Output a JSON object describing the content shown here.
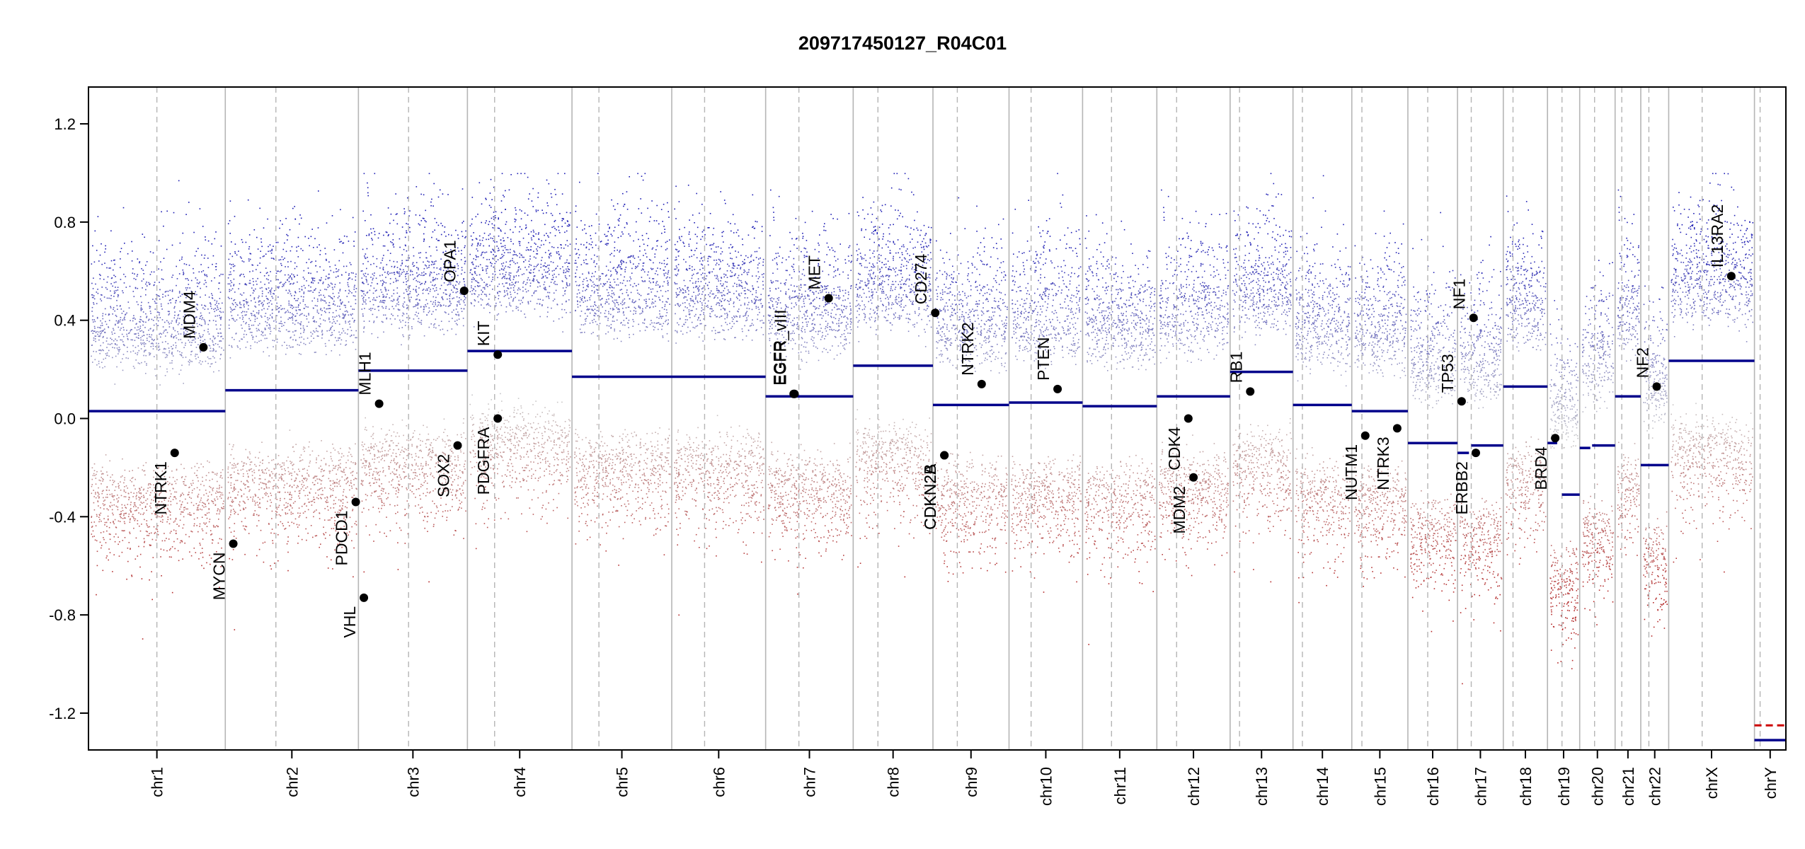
{
  "chart_data": {
    "type": "scatter",
    "title": "209717450127_R04C01",
    "xlabel": "",
    "ylabel": "",
    "ylim": [
      -1.35,
      1.35
    ],
    "yticks": [
      -1.2,
      -0.8,
      -0.4,
      0.0,
      0.4,
      0.8,
      1.2
    ],
    "ytick_labels": [
      "-1.2",
      "-0.8",
      "-0.4",
      "0.0",
      "0.4",
      "0.8",
      "1.2"
    ],
    "chromosomes": [
      {
        "name": "chr1",
        "length": 248.9,
        "centromere": 0.5
      },
      {
        "name": "chr2",
        "length": 242.2,
        "centromere": 0.38
      },
      {
        "name": "chr3",
        "length": 198.3,
        "centromere": 0.46
      },
      {
        "name": "chr4",
        "length": 190.2,
        "centromere": 0.26
      },
      {
        "name": "chr5",
        "length": 181.5,
        "centromere": 0.27
      },
      {
        "name": "chr6",
        "length": 170.8,
        "centromere": 0.35
      },
      {
        "name": "chr7",
        "length": 159.3,
        "centromere": 0.38
      },
      {
        "name": "chr8",
        "length": 145.1,
        "centromere": 0.31
      },
      {
        "name": "chr9",
        "length": 138.4,
        "centromere": 0.32
      },
      {
        "name": "chr10",
        "length": 133.8,
        "centromere": 0.3
      },
      {
        "name": "chr11",
        "length": 135.1,
        "centromere": 0.39
      },
      {
        "name": "chr12",
        "length": 133.3,
        "centromere": 0.27
      },
      {
        "name": "chr13",
        "length": 114.4,
        "centromere": 0.15
      },
      {
        "name": "chr14",
        "length": 107.0,
        "centromere": 0.16
      },
      {
        "name": "chr15",
        "length": 102.0,
        "centromere": 0.18
      },
      {
        "name": "chr16",
        "length": 90.3,
        "centromere": 0.4
      },
      {
        "name": "chr17",
        "length": 83.3,
        "centromere": 0.3
      },
      {
        "name": "chr18",
        "length": 80.4,
        "centromere": 0.22
      },
      {
        "name": "chr19",
        "length": 58.6,
        "centromere": 0.45
      },
      {
        "name": "chr20",
        "length": 64.4,
        "centromere": 0.42
      },
      {
        "name": "chr21",
        "length": 46.7,
        "centromere": 0.26
      },
      {
        "name": "chr22",
        "length": 50.8,
        "centromere": 0.29
      },
      {
        "name": "chrX",
        "length": 156.0,
        "centromere": 0.39
      },
      {
        "name": "chrY",
        "length": 57.2,
        "centromere": 0.18
      }
    ],
    "segments": [
      {
        "chr": "chr1",
        "start": 0.0,
        "end": 1.0,
        "value": 0.03
      },
      {
        "chr": "chr2",
        "start": 0.0,
        "end": 1.0,
        "value": 0.115
      },
      {
        "chr": "chr3",
        "start": 0.0,
        "end": 1.0,
        "value": 0.195
      },
      {
        "chr": "chr4",
        "start": 0.0,
        "end": 1.0,
        "value": 0.275
      },
      {
        "chr": "chr5",
        "start": 0.0,
        "end": 1.0,
        "value": 0.17
      },
      {
        "chr": "chr6",
        "start": 0.0,
        "end": 1.0,
        "value": 0.17
      },
      {
        "chr": "chr7",
        "start": 0.0,
        "end": 1.0,
        "value": 0.09
      },
      {
        "chr": "chr8",
        "start": 0.0,
        "end": 1.0,
        "value": 0.215
      },
      {
        "chr": "chr9",
        "start": 0.0,
        "end": 1.0,
        "value": 0.055
      },
      {
        "chr": "chr10",
        "start": 0.0,
        "end": 1.0,
        "value": 0.065
      },
      {
        "chr": "chr11",
        "start": 0.0,
        "end": 1.0,
        "value": 0.05
      },
      {
        "chr": "chr12",
        "start": 0.0,
        "end": 1.0,
        "value": 0.09
      },
      {
        "chr": "chr13",
        "start": 0.0,
        "end": 1.0,
        "value": 0.19
      },
      {
        "chr": "chr14",
        "start": 0.0,
        "end": 1.0,
        "value": 0.055
      },
      {
        "chr": "chr15",
        "start": 0.0,
        "end": 1.0,
        "value": 0.03
      },
      {
        "chr": "chr16",
        "start": 0.0,
        "end": 1.0,
        "value": -0.1
      },
      {
        "chr": "chr17",
        "start": 0.0,
        "end": 0.25,
        "value": -0.14
      },
      {
        "chr": "chr17",
        "start": 0.3,
        "end": 1.0,
        "value": -0.11
      },
      {
        "chr": "chr18",
        "start": 0.0,
        "end": 1.0,
        "value": 0.13
      },
      {
        "chr": "chr19",
        "start": 0.0,
        "end": 0.3,
        "value": -0.1
      },
      {
        "chr": "chr19",
        "start": 0.45,
        "end": 1.0,
        "value": -0.31
      },
      {
        "chr": "chr20",
        "start": 0.0,
        "end": 0.3,
        "value": -0.12
      },
      {
        "chr": "chr20",
        "start": 0.35,
        "end": 1.0,
        "value": -0.11
      },
      {
        "chr": "chr21",
        "start": 0.0,
        "end": 1.0,
        "value": 0.09
      },
      {
        "chr": "chr22",
        "start": 0.0,
        "end": 1.0,
        "value": -0.19
      },
      {
        "chr": "chrX",
        "start": 0.0,
        "end": 1.0,
        "value": 0.235
      },
      {
        "chr": "chrY",
        "start": 0.0,
        "end": 1.0,
        "value": -1.31
      }
    ],
    "red_segments": [
      {
        "chr": "chrY",
        "start": 0.0,
        "end": 1.0,
        "value": -1.25
      }
    ],
    "genes": [
      {
        "name": "NTRK1",
        "chr": "chr1",
        "pos": 0.63,
        "value": -0.14,
        "side": "below"
      },
      {
        "name": "MDM4",
        "chr": "chr1",
        "pos": 0.84,
        "value": 0.29,
        "side": "above"
      },
      {
        "name": "MYCN",
        "chr": "chr2",
        "pos": 0.06,
        "value": -0.51,
        "side": "below"
      },
      {
        "name": "PDCD1",
        "chr": "chr2",
        "pos": 0.98,
        "value": -0.34,
        "side": "below"
      },
      {
        "name": "VHL",
        "chr": "chr3",
        "pos": 0.05,
        "value": -0.73,
        "side": "below"
      },
      {
        "name": "MLH1",
        "chr": "chr3",
        "pos": 0.19,
        "value": 0.06,
        "side": "above"
      },
      {
        "name": "SOX2",
        "chr": "chr3",
        "pos": 0.91,
        "value": -0.11,
        "side": "below"
      },
      {
        "name": "OPA1",
        "chr": "chr3",
        "pos": 0.97,
        "value": 0.52,
        "side": "above"
      },
      {
        "name": "KIT",
        "chr": "chr4",
        "pos": 0.29,
        "value": 0.26,
        "side": "above"
      },
      {
        "name": "PDGFRA",
        "chr": "chr4",
        "pos": 0.29,
        "value": 0.0,
        "side": "below"
      },
      {
        "name": "EGFR",
        "chr": "chr7",
        "pos": 0.32,
        "value": 0.1,
        "side": "above"
      },
      {
        "name": "EGFR_vIII",
        "chr": "chr7",
        "pos": 0.33,
        "value": 0.1,
        "side": "above"
      },
      {
        "name": "MET",
        "chr": "chr7",
        "pos": 0.72,
        "value": 0.49,
        "side": "above"
      },
      {
        "name": "CD274",
        "chr": "chr9",
        "pos": 0.03,
        "value": 0.43,
        "side": "above"
      },
      {
        "name": "CDKN2A",
        "chr": "chr9",
        "pos": 0.15,
        "value": -0.15,
        "side": "below"
      },
      {
        "name": "CDKN2B",
        "chr": "chr9",
        "pos": 0.15,
        "value": -0.15,
        "side": "below"
      },
      {
        "name": "NTRK2",
        "chr": "chr9",
        "pos": 0.64,
        "value": 0.14,
        "side": "above"
      },
      {
        "name": "PTEN",
        "chr": "chr10",
        "pos": 0.66,
        "value": 0.12,
        "side": "above"
      },
      {
        "name": "MDM2",
        "chr": "chr12",
        "pos": 0.5,
        "value": -0.24,
        "side": "below"
      },
      {
        "name": "CDK4",
        "chr": "chr12",
        "pos": 0.43,
        "value": 0.0,
        "side": "below"
      },
      {
        "name": "RB1",
        "chr": "chr13",
        "pos": 0.32,
        "value": 0.11,
        "side": "above"
      },
      {
        "name": "NUTM1",
        "chr": "chr15",
        "pos": 0.24,
        "value": -0.07,
        "side": "below"
      },
      {
        "name": "NTRK3",
        "chr": "chr15",
        "pos": 0.81,
        "value": -0.04,
        "side": "below"
      },
      {
        "name": "TP53",
        "chr": "chr17",
        "pos": 0.09,
        "value": 0.07,
        "side": "above"
      },
      {
        "name": "ERBB2",
        "chr": "chr17",
        "pos": 0.4,
        "value": -0.14,
        "side": "below"
      },
      {
        "name": "NF1",
        "chr": "chr17",
        "pos": 0.35,
        "value": 0.41,
        "side": "above"
      },
      {
        "name": "BRD4",
        "chr": "chr19",
        "pos": 0.24,
        "value": -0.08,
        "side": "below"
      },
      {
        "name": "NF2",
        "chr": "chr22",
        "pos": 0.57,
        "value": 0.13,
        "side": "above"
      },
      {
        "name": "IL13RA2",
        "chr": "chrX",
        "pos": 0.73,
        "value": 0.58,
        "side": "above"
      }
    ],
    "gene_labels": [
      {
        "name": "NTRK1",
        "text": "NTRK1"
      },
      {
        "name": "MDM4",
        "text": "MDM4"
      },
      {
        "name": "MYCN",
        "text": "MYCN"
      },
      {
        "name": "PDCD1",
        "text": "PDCD1"
      },
      {
        "name": "VHL",
        "text": "VHL"
      },
      {
        "name": "MLH1",
        "text": "MLH1"
      },
      {
        "name": "SOX2",
        "text": "SOX2"
      },
      {
        "name": "OPA1",
        "text": "OPA1"
      },
      {
        "name": "KIT",
        "text": "KIT"
      },
      {
        "name": "PDGFRA",
        "text": "PDGFRA"
      },
      {
        "name": "EGFR",
        "text": "EGFR"
      },
      {
        "name": "EGFR_vIII",
        "text": "EGFR_vIII"
      },
      {
        "name": "MET",
        "text": "MET"
      },
      {
        "name": "CD274",
        "text": "CD274"
      },
      {
        "name": "CDKN2A",
        "text": "CDKN2A"
      },
      {
        "name": "CDKN2B",
        "text": "CDKN2B"
      },
      {
        "name": "NTRK2",
        "text": "NTRK2"
      },
      {
        "name": "PTEN",
        "text": "PTEN"
      },
      {
        "name": "MDM2",
        "text": "MDM2"
      },
      {
        "name": "CDK4",
        "text": "CDK4"
      },
      {
        "name": "RB1",
        "text": "RB1"
      },
      {
        "name": "NUTM1",
        "text": "NUTM1"
      },
      {
        "name": "NTRK3",
        "text": "NTRK3"
      },
      {
        "name": "TP53",
        "text": "TP53"
      },
      {
        "name": "ERBB2",
        "text": "ERBB2"
      },
      {
        "name": "NF1",
        "text": "NF1"
      },
      {
        "name": "BRD4",
        "text": "BRD4"
      },
      {
        "name": "NF2",
        "text": "NF2"
      },
      {
        "name": "IL13RA2",
        "text": "IL13RA2"
      }
    ],
    "probe_scatter": {
      "description_only": false,
      "per_chr_mean_offset": {
        "chr1": 0.03,
        "chr2": 0.11,
        "chr3": 0.19,
        "chr4": 0.27,
        "chr5": 0.17,
        "chr6": 0.17,
        "chr7": 0.09,
        "chr8": 0.21,
        "chr9": 0.05,
        "chr10": 0.06,
        "chr11": 0.05,
        "chr12": 0.09,
        "chr13": 0.19,
        "chr14": 0.05,
        "chr15": 0.03,
        "chr16": -0.1,
        "chr17": -0.11,
        "chr18": 0.13,
        "chr19": -0.3,
        "chr20": -0.11,
        "chr21": 0.09,
        "chr22": -0.19,
        "chrX": 0.23,
        "chrY": -1.3
      }
    },
    "colors": {
      "segment": "#00008b",
      "segment_red": "#cc0000",
      "high": "#1c1cb4",
      "low": "#b42828",
      "mid": "#bfbfbf",
      "chrom_line": "#b5b5b5",
      "centromere_line": "#b5b5b5",
      "gene_point": "#000000"
    }
  }
}
